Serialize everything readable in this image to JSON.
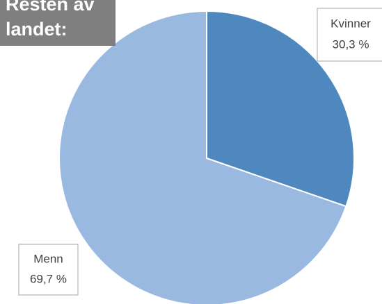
{
  "chart_data": {
    "type": "pie",
    "title": "Resten av landet:",
    "categories": [
      "Kvinner",
      "Menn"
    ],
    "values": [
      30.3,
      69.7
    ],
    "value_labels": [
      "30,3 %",
      "69,7 %"
    ],
    "colors": [
      "#4f88bf",
      "#99b9e0"
    ]
  }
}
